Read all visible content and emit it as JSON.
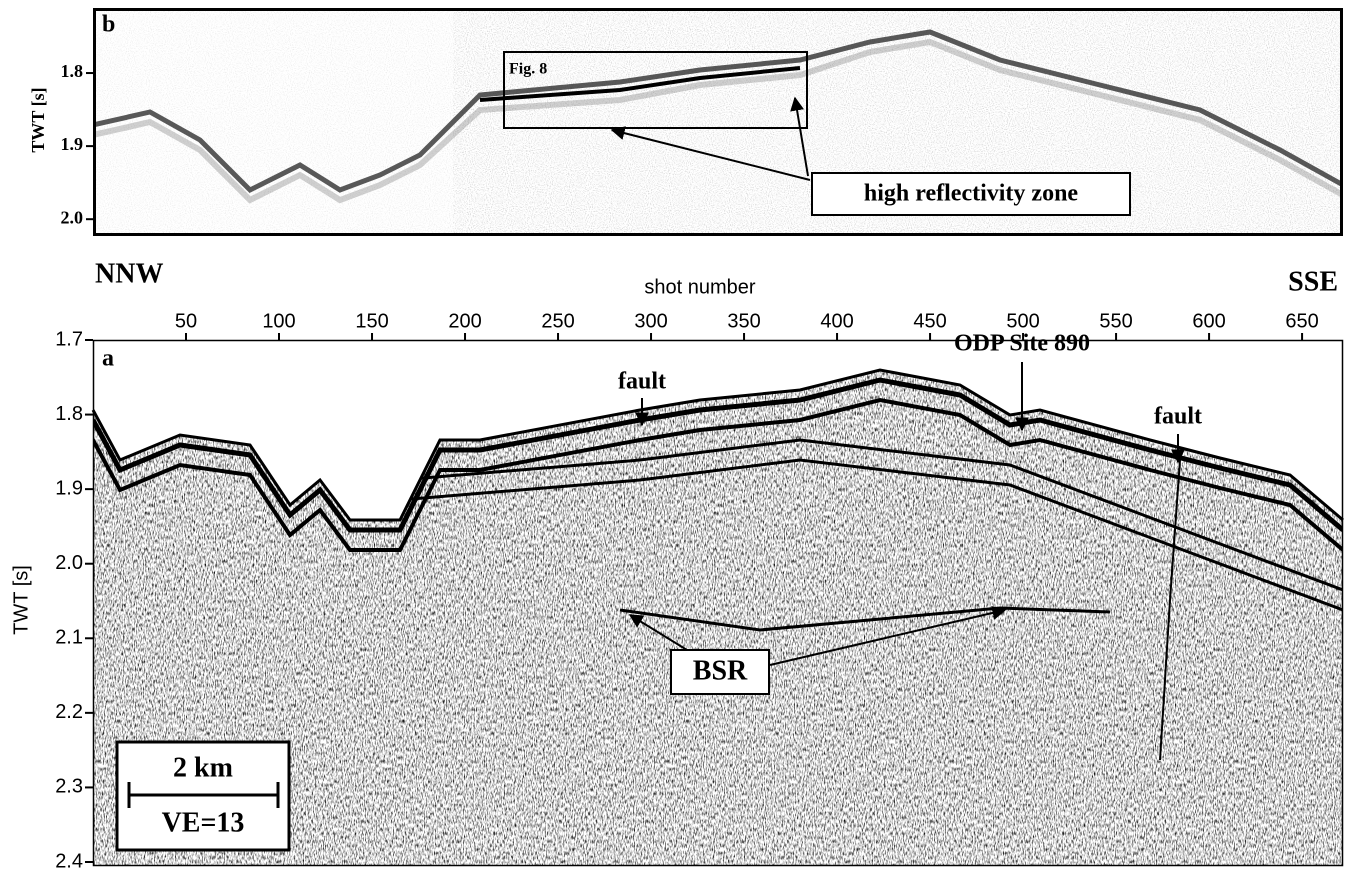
{
  "panel_b": {
    "label": "b",
    "y_axis_label": "TWT [s]",
    "ylim": [
      1.711,
      2.023
    ],
    "yticks": [
      1.8,
      1.9,
      {
        "value": 2,
        "label": "2.0"
      }
    ],
    "box_label": "Fig. 8",
    "annotation": "high reflectivity zone"
  },
  "orientation": {
    "left": "NNW",
    "right": "SSE"
  },
  "panel_a": {
    "label": "a",
    "x_axis_label": "shot number",
    "y_axis_label": "TWT [s]",
    "xlim": [
      0,
      672
    ],
    "xticks": [
      50,
      100,
      150,
      200,
      250,
      300,
      350,
      400,
      450,
      500,
      550,
      600,
      650
    ],
    "ylim": [
      1.7,
      2.4
    ],
    "yticks": [
      1.7,
      1.8,
      1.9,
      {
        "value": 2,
        "label": "2.0"
      },
      2.1,
      2.2,
      2.3,
      2.4
    ],
    "annotations": {
      "fault_left": "fault",
      "site": "ODP Site 890",
      "fault_right": "fault",
      "bsr": "BSR"
    },
    "scale_bar": {
      "length": "2 km",
      "ve": "VE=13"
    }
  }
}
